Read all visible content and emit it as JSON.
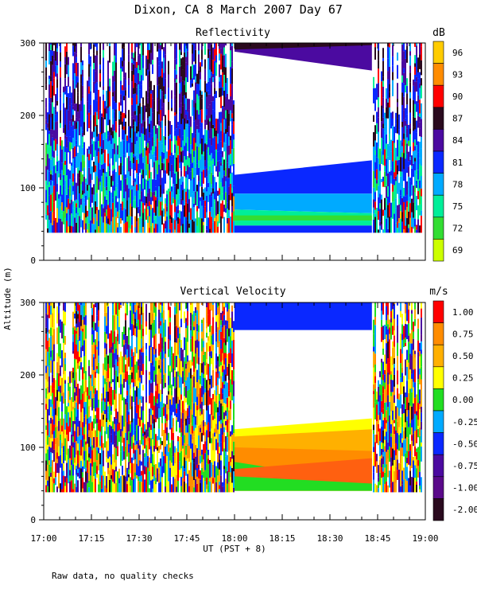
{
  "header": {
    "title": "Dixon, CA  8 March 2007  Day  67",
    "footnote": "Raw data, no quality checks"
  },
  "axes": {
    "ylabel": "Altitude (m)",
    "xlabel": "UT  (PST + 8)",
    "xticks": [
      "17:00",
      "17:15",
      "17:30",
      "17:45",
      "18:00",
      "18:15",
      "18:30",
      "18:45",
      "19:00"
    ],
    "x_range_hours": [
      17.0,
      19.0
    ],
    "y_range_m": [
      0,
      300
    ]
  },
  "chart_data": [
    {
      "type": "heatmap",
      "title": "Reflectivity",
      "unit": "dB",
      "x_range_hours": [
        17.0,
        19.0
      ],
      "ylim": [
        0,
        300
      ],
      "yticks": [
        0,
        100,
        200,
        300
      ],
      "data_bottom_m": 38,
      "gap_hours": [
        18.0,
        18.72
      ],
      "colorbar": {
        "labels": [
          "96",
          "93",
          "90",
          "87",
          "84",
          "81",
          "78",
          "75",
          "72",
          "69"
        ],
        "colors": [
          "#ffcc00",
          "#ff8c00",
          "#ff0000",
          "#2a0a1e",
          "#4b0aa0",
          "#0a28ff",
          "#00aaff",
          "#00ee99",
          "#33dd33",
          "#ccff00"
        ]
      },
      "gap_bands": [
        {
          "level": "81",
          "color": "#0a28ff",
          "m_left": [
            92,
            118
          ],
          "m_right": [
            92,
            138
          ]
        },
        {
          "level": "78",
          "color": "#00aaff",
          "m_left": [
            70,
            92
          ],
          "m_right": [
            65,
            92
          ]
        },
        {
          "level": "75",
          "color": "#00ee99",
          "m_left": [
            48,
            70
          ],
          "m_right": [
            48,
            65
          ]
        },
        {
          "level": "72",
          "color": "#33dd33",
          "m_left": [
            55,
            62
          ],
          "m_right": [
            55,
            62
          ]
        },
        {
          "level": "81",
          "color": "#0a28ff",
          "m_left": [
            38,
            48
          ],
          "m_right": [
            38,
            48
          ]
        },
        {
          "level": "84",
          "color": "#4b0aa0",
          "m_left": [
            288,
            300
          ],
          "m_right": [
            262,
            300
          ]
        },
        {
          "level": "87",
          "color": "#2a0a1e",
          "m_left": [
            291,
            300
          ],
          "m_right": [
            297,
            300
          ]
        }
      ]
    },
    {
      "type": "heatmap",
      "title": "Vertical Velocity",
      "unit": "m/s",
      "x_range_hours": [
        17.0,
        19.0
      ],
      "ylim": [
        0,
        300
      ],
      "yticks": [
        0,
        100,
        200,
        300
      ],
      "data_bottom_m": 38,
      "gap_hours": [
        18.0,
        18.72
      ],
      "colorbar": {
        "labels": [
          "1.00",
          "0.75",
          "0.50",
          "0.25",
          "0.00",
          "-0.25",
          "-0.50",
          "-0.75",
          "-1.00",
          "-2.00"
        ],
        "colors": [
          "#ff0000",
          "#ff8c00",
          "#ffb000",
          "#ffff00",
          "#22dd22",
          "#00aaff",
          "#0a28ff",
          "#4b0aa0",
          "#5a0a8a",
          "#2a0a1e"
        ]
      },
      "gap_bands": [
        {
          "level": "-0.50",
          "color": "#0a28ff",
          "m_left": [
            262,
            300
          ],
          "m_right": [
            262,
            300
          ]
        },
        {
          "level": "0.25",
          "color": "#ffff00",
          "m_left": [
            40,
            125
          ],
          "m_right": [
            40,
            140
          ]
        },
        {
          "level": "0.50",
          "color": "#ffb000",
          "m_left": [
            40,
            115
          ],
          "m_right": [
            40,
            125
          ]
        },
        {
          "level": "0.75",
          "color": "#ff8c00",
          "m_left": [
            40,
            100
          ],
          "m_right": [
            40,
            95
          ]
        },
        {
          "level": "0.00",
          "color": "#22dd22",
          "m_left": [
            40,
            80
          ],
          "m_right": [
            40,
            50
          ]
        },
        {
          "level": "1.00",
          "color": "#ff6010",
          "m_left": [
            60,
            70
          ],
          "m_right": [
            50,
            85
          ]
        }
      ]
    }
  ]
}
